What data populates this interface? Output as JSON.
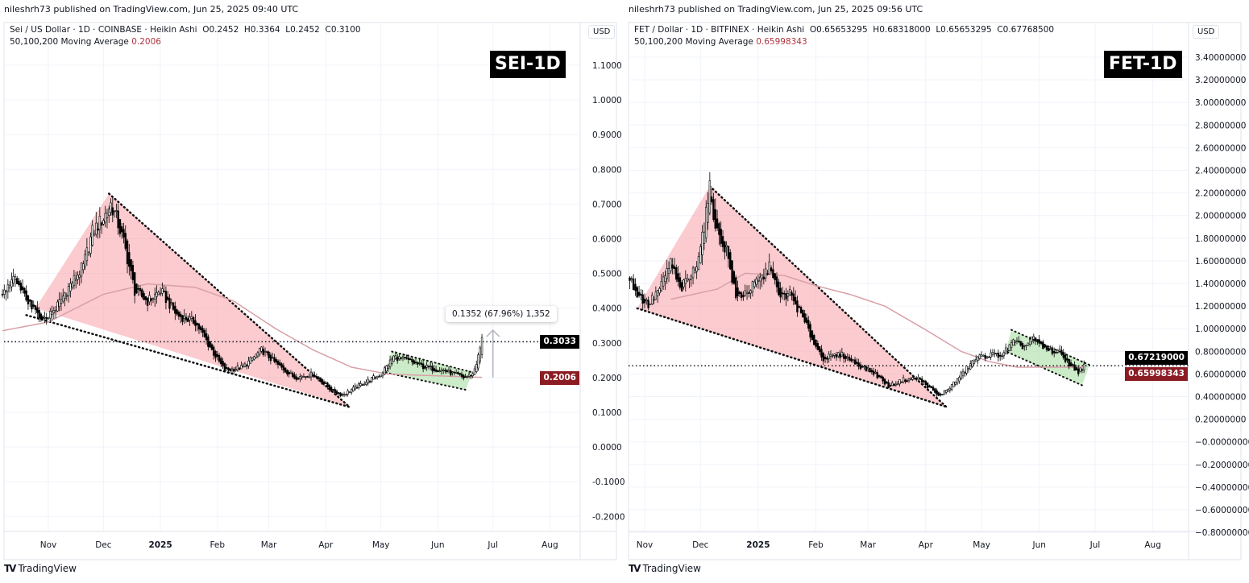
{
  "panels": [
    {
      "published": "nileshrh73 published on TradingView.com, Jun 25, 2025 09:40 UTC",
      "symbol_line": "Sei / US Dollar · 1D · COINBASE · Heikin Ashi  O0.2452  H0.3364  L0.2452  C0.3100",
      "ma_label": "50,100,200 Moving Average",
      "ma_value": "0.2006",
      "badge": "SEI-1D",
      "currency": "USD",
      "measure_label": "0.1352 (67.96%) 1,352",
      "last_price_label": "0.3033",
      "ma_price_label": "0.2006",
      "logo": "TradingView"
    },
    {
      "published": "nileshrh73 published on TradingView.com, Jun 25, 2025 09:56 UTC",
      "symbol_line": "FET / Dollar · 1D · BITFINEX · Heikin Ashi  O0.65653295  H0.68318000  L0.65653295  C0.67768500",
      "ma_label": "50,100,200 Moving Average",
      "ma_value": "0.65998343",
      "badge": "FET-1D",
      "currency": "USD",
      "last_price_label": "0.67219000",
      "ma_price_label": "0.65998343",
      "logo": "TradingView"
    }
  ],
  "colors": {
    "candle_up": "#ffffff",
    "candle_down": "#000000",
    "ma": "#d8a0a8",
    "wedge_fill": "#f7a1a8",
    "flag_fill": "#b7e3b0",
    "last_price_bg": "#000000",
    "ma_price_bg": "#8c1c24",
    "grid": "#f0f3fa"
  },
  "chart_data": [
    {
      "type": "candlestick",
      "title": "Sei / US Dollar · 1D · COINBASE · Heikin Ashi",
      "x_ticks": [
        "Nov",
        "Dec",
        "2025",
        "Feb",
        "Mar",
        "Apr",
        "May",
        "Jun",
        "Jul",
        "Aug"
      ],
      "y_ticks": [
        "1.1000",
        "1.0000",
        "0.9000",
        "0.8000",
        "0.7000",
        "0.6000",
        "0.5000",
        "0.4000",
        "0.3000",
        "0.2000",
        "0.1000",
        "0.0000",
        "-0.1000",
        "-0.2000"
      ],
      "ylim": [
        -0.25,
        1.2
      ],
      "close": [
        [
          "2024-10-07",
          0.44
        ],
        [
          "2024-10-12",
          0.49
        ],
        [
          "2024-10-20",
          0.43
        ],
        [
          "2024-10-28",
          0.36
        ],
        [
          "2024-11-05",
          0.4
        ],
        [
          "2024-11-12",
          0.46
        ],
        [
          "2024-11-20",
          0.52
        ],
        [
          "2024-11-25",
          0.62
        ],
        [
          "2024-12-01",
          0.66
        ],
        [
          "2024-12-05",
          0.7
        ],
        [
          "2024-12-08",
          0.66
        ],
        [
          "2024-12-12",
          0.59
        ],
        [
          "2024-12-18",
          0.45
        ],
        [
          "2024-12-25",
          0.42
        ],
        [
          "2025-01-01",
          0.45
        ],
        [
          "2025-01-10",
          0.38
        ],
        [
          "2025-01-20",
          0.36
        ],
        [
          "2025-01-30",
          0.27
        ],
        [
          "2025-02-05",
          0.22
        ],
        [
          "2025-02-15",
          0.23
        ],
        [
          "2025-02-25",
          0.28
        ],
        [
          "2025-03-05",
          0.24
        ],
        [
          "2025-03-15",
          0.2
        ],
        [
          "2025-03-25",
          0.21
        ],
        [
          "2025-04-05",
          0.16
        ],
        [
          "2025-04-10",
          0.15
        ],
        [
          "2025-04-20",
          0.18
        ],
        [
          "2025-05-01",
          0.21
        ],
        [
          "2025-05-08",
          0.26
        ],
        [
          "2025-05-15",
          0.25
        ],
        [
          "2025-05-25",
          0.23
        ],
        [
          "2025-06-05",
          0.22
        ],
        [
          "2025-06-15",
          0.2
        ],
        [
          "2025-06-20",
          0.21
        ],
        [
          "2025-06-23",
          0.26
        ],
        [
          "2025-06-25",
          0.31
        ]
      ],
      "moving_average": [
        [
          "2024-10-07",
          0.335
        ],
        [
          "2024-11-01",
          0.36
        ],
        [
          "2024-12-01",
          0.44
        ],
        [
          "2024-12-25",
          0.47
        ],
        [
          "2025-01-20",
          0.46
        ],
        [
          "2025-02-10",
          0.42
        ],
        [
          "2025-03-05",
          0.34
        ],
        [
          "2025-03-25",
          0.28
        ],
        [
          "2025-04-15",
          0.23
        ],
        [
          "2025-05-05",
          0.21
        ],
        [
          "2025-06-25",
          0.2006
        ]
      ],
      "last_price": 0.3033,
      "ma_last": 0.2006,
      "wedge": [
        [
          "2024-10-25",
          0.4
        ],
        [
          "2024-12-04",
          0.73
        ],
        [
          "2025-04-14",
          0.115
        ]
      ],
      "wedge_lower": [
        [
          "2024-10-20",
          0.38
        ],
        [
          "2025-04-14",
          0.115
        ]
      ],
      "flag": [
        [
          "2025-05-07",
          0.275
        ],
        [
          "2025-06-20",
          0.215
        ],
        [
          "2025-06-16",
          0.165
        ],
        [
          "2025-05-03",
          0.215
        ]
      ],
      "measure": {
        "from": 0.2006,
        "to": 0.3364,
        "date": "2025-07-01"
      }
    },
    {
      "type": "candlestick",
      "title": "FET / Dollar · 1D · BITFINEX · Heikin Ashi",
      "x_ticks": [
        "Nov",
        "Dec",
        "2025",
        "Feb",
        "Mar",
        "Apr",
        "May",
        "Jun",
        "Jul",
        "Aug"
      ],
      "y_ticks": [
        "3.40000000",
        "3.20000000",
        "3.00000000",
        "2.80000000",
        "2.60000000",
        "2.40000000",
        "2.20000000",
        "2.00000000",
        "1.80000000",
        "1.60000000",
        "1.40000000",
        "1.20000000",
        "1.00000000",
        "0.80000000",
        "0.60000000",
        "0.40000000",
        "0.20000000",
        "−0.00000000",
        "−0.20000000",
        "−0.40000000",
        "−0.60000000",
        "−0.80000000"
      ],
      "ylim": [
        -0.8,
        3.4
      ],
      "close": [
        [
          "2024-10-24",
          1.45
        ],
        [
          "2024-10-28",
          1.31
        ],
        [
          "2024-11-03",
          1.21
        ],
        [
          "2024-11-10",
          1.38
        ],
        [
          "2024-11-15",
          1.59
        ],
        [
          "2024-11-20",
          1.34
        ],
        [
          "2024-11-28",
          1.52
        ],
        [
          "2024-12-03",
          1.91
        ],
        [
          "2024-12-06",
          2.23
        ],
        [
          "2024-12-10",
          1.84
        ],
        [
          "2024-12-15",
          1.7
        ],
        [
          "2024-12-20",
          1.27
        ],
        [
          "2024-12-27",
          1.34
        ],
        [
          "2025-01-03",
          1.45
        ],
        [
          "2025-01-08",
          1.56
        ],
        [
          "2025-01-12",
          1.27
        ],
        [
          "2025-01-18",
          1.31
        ],
        [
          "2025-01-25",
          1.09
        ],
        [
          "2025-02-01",
          0.84
        ],
        [
          "2025-02-05",
          0.74
        ],
        [
          "2025-02-15",
          0.77
        ],
        [
          "2025-02-25",
          0.67
        ],
        [
          "2025-03-05",
          0.6
        ],
        [
          "2025-03-12",
          0.49
        ],
        [
          "2025-03-20",
          0.55
        ],
        [
          "2025-03-28",
          0.56
        ],
        [
          "2025-04-05",
          0.45
        ],
        [
          "2025-04-08",
          0.4
        ],
        [
          "2025-04-15",
          0.5
        ],
        [
          "2025-04-22",
          0.63
        ],
        [
          "2025-04-28",
          0.74
        ],
        [
          "2025-05-05",
          0.77
        ],
        [
          "2025-05-12",
          0.77
        ],
        [
          "2025-05-18",
          0.88
        ],
        [
          "2025-05-24",
          0.84
        ],
        [
          "2025-05-28",
          0.92
        ],
        [
          "2025-06-05",
          0.81
        ],
        [
          "2025-06-12",
          0.79
        ],
        [
          "2025-06-18",
          0.67
        ],
        [
          "2025-06-22",
          0.62
        ],
        [
          "2025-06-25",
          0.672
        ]
      ],
      "moving_average": [
        [
          "2024-11-15",
          1.26
        ],
        [
          "2024-12-10",
          1.35
        ],
        [
          "2024-12-25",
          1.49
        ],
        [
          "2025-01-15",
          1.47
        ],
        [
          "2025-02-01",
          1.38
        ],
        [
          "2025-02-20",
          1.3
        ],
        [
          "2025-03-10",
          1.2
        ],
        [
          "2025-04-01",
          0.99
        ],
        [
          "2025-04-20",
          0.8
        ],
        [
          "2025-05-05",
          0.71
        ],
        [
          "2025-05-20",
          0.66
        ],
        [
          "2025-06-25",
          0.66
        ]
      ],
      "last_price": 0.67219,
      "ma_last": 0.65998343,
      "wedge": [
        [
          "2024-10-28",
          1.18
        ],
        [
          "2024-12-06",
          2.26
        ],
        [
          "2025-04-12",
          0.31
        ]
      ],
      "wedge_lower": [
        [
          "2024-10-28",
          1.18
        ],
        [
          "2025-04-12",
          0.31
        ]
      ],
      "flag": [
        [
          "2025-05-17",
          0.99
        ],
        [
          "2025-06-28",
          0.68
        ],
        [
          "2025-06-24",
          0.5
        ],
        [
          "2025-05-14",
          0.8
        ]
      ]
    }
  ]
}
